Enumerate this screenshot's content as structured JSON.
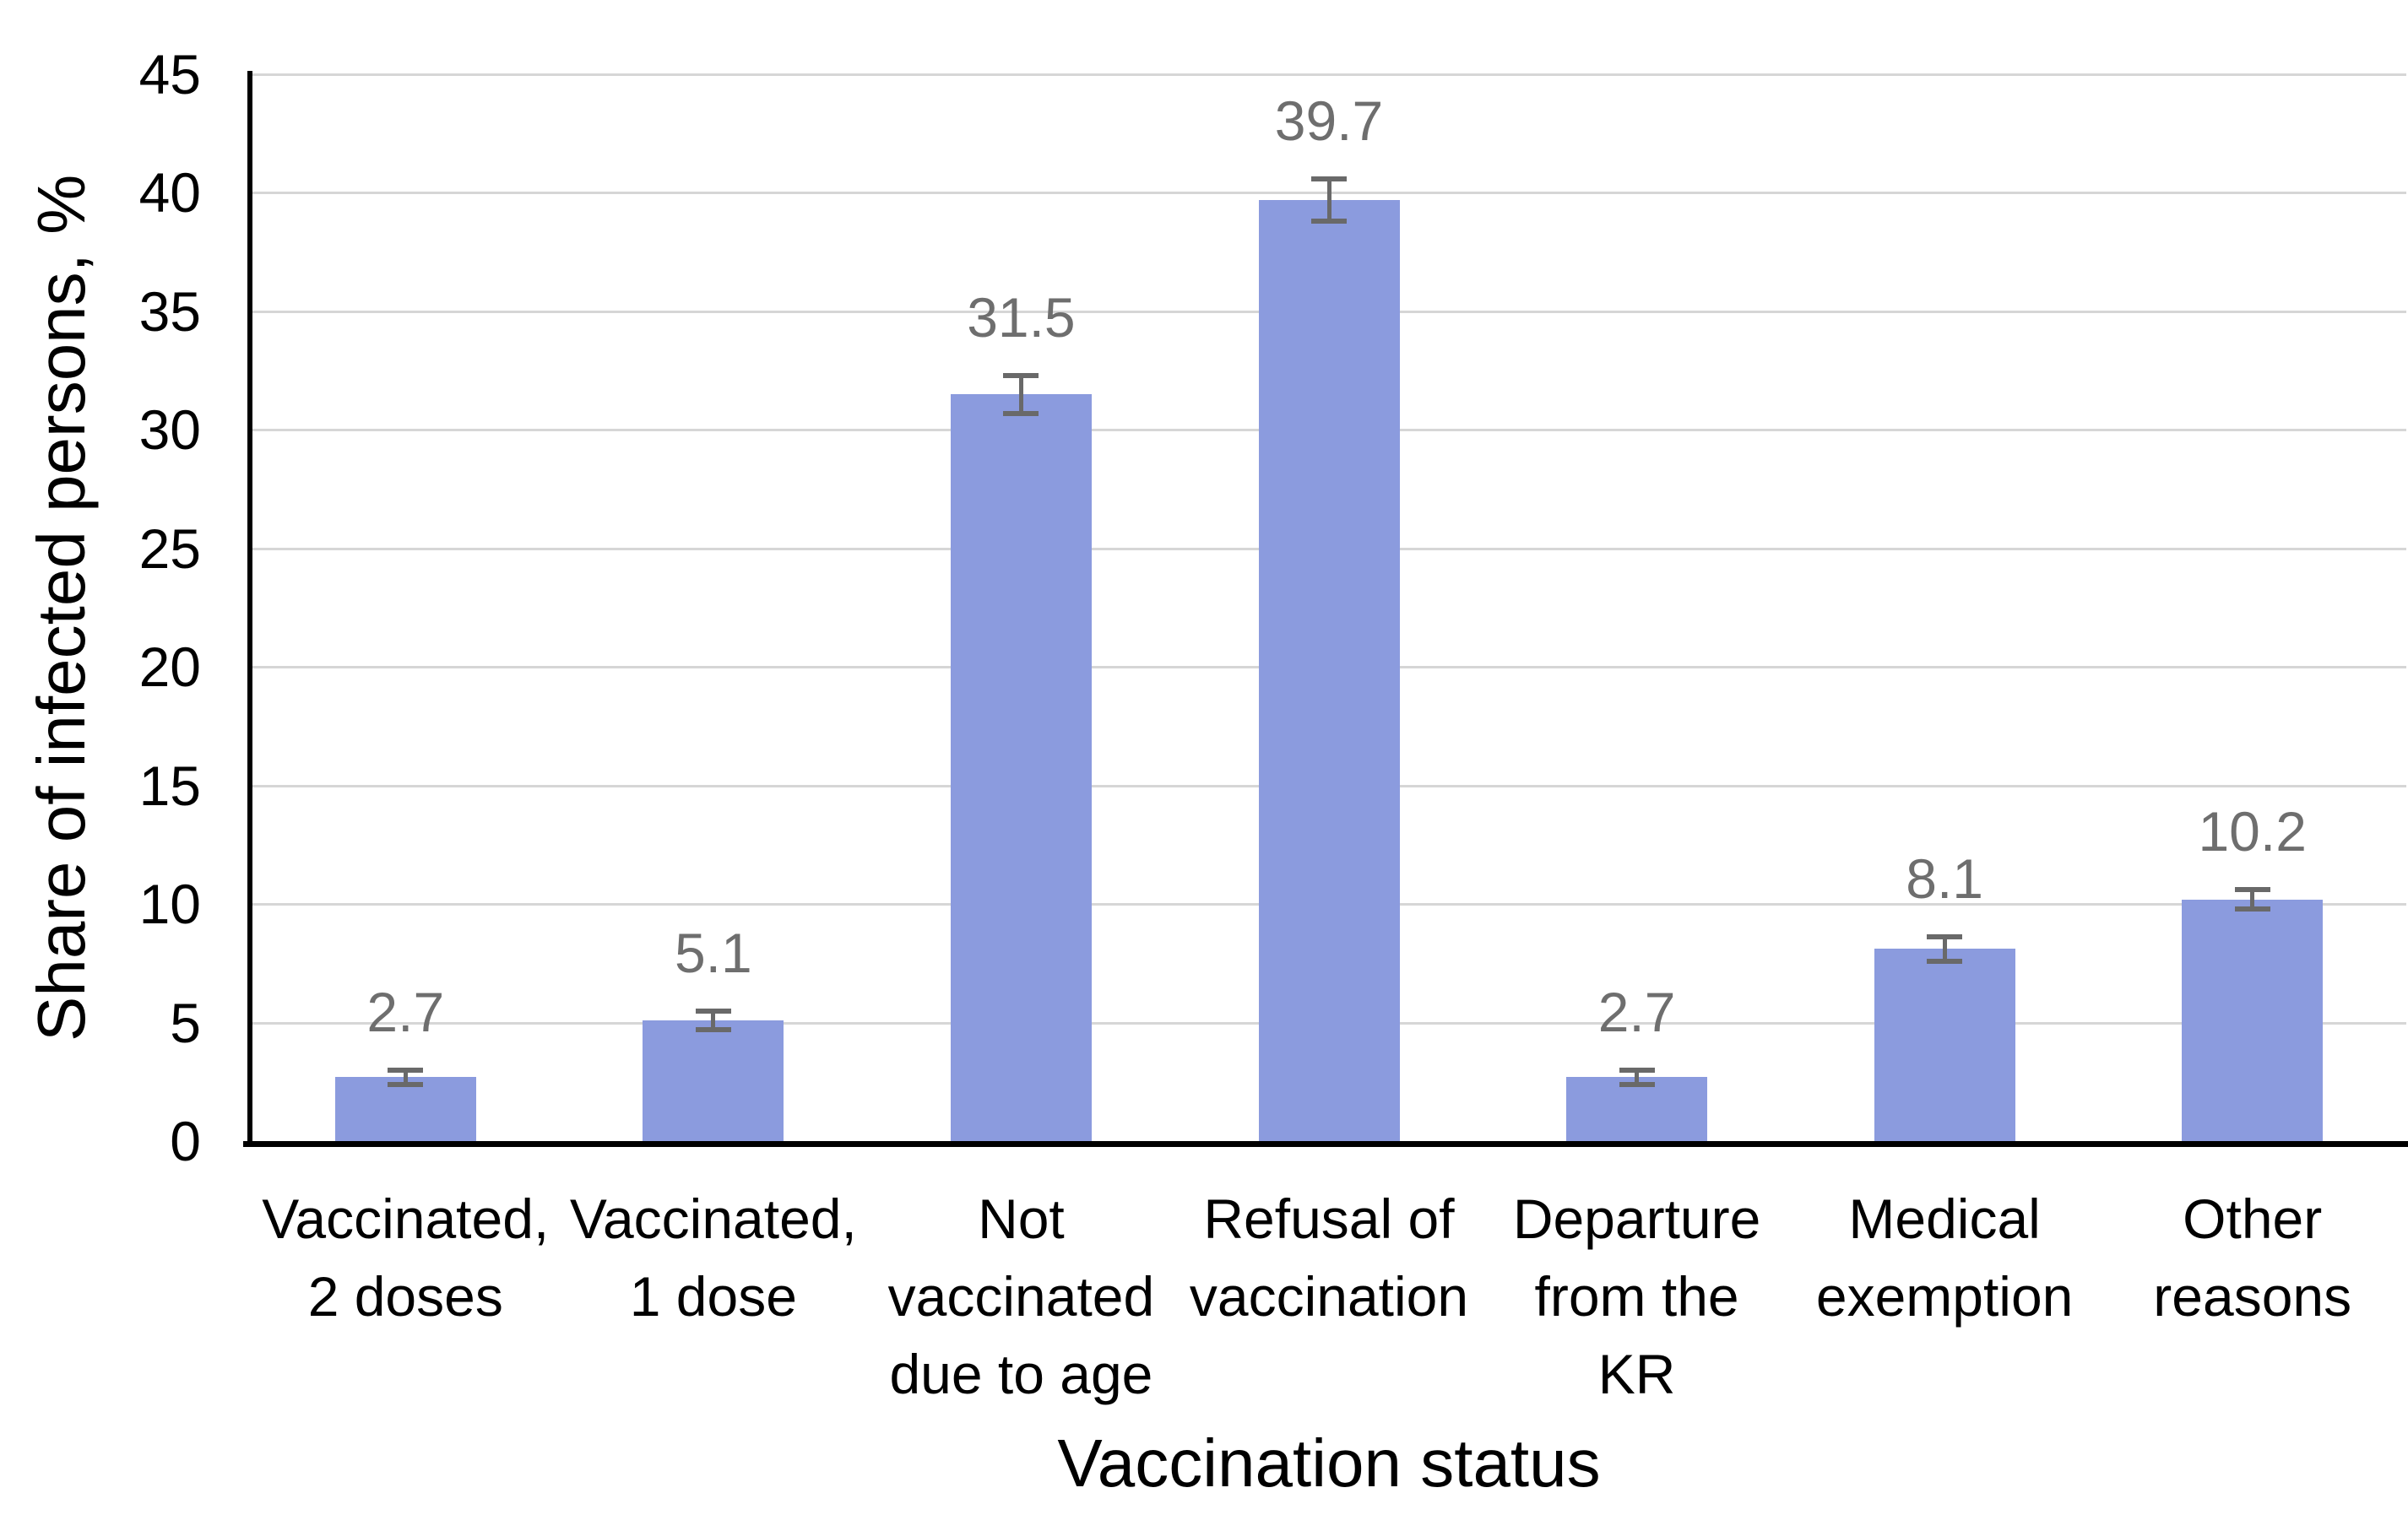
{
  "chart_data": {
    "type": "bar",
    "title": "",
    "xlabel": "Vaccination status",
    "ylabel": "Share of infected persons, %",
    "categories": [
      "Vaccinated, 2 doses",
      "Vaccinated, 1 dose",
      "Not vaccinated due to age",
      "Refusal of vaccination",
      "Departure from the KR",
      "Medical exemption",
      "Other reasons"
    ],
    "category_lines": [
      [
        "Vaccinated,",
        "2 doses"
      ],
      [
        "Vaccinated,",
        "1 dose"
      ],
      [
        "Not",
        "vaccinated",
        "due to age"
      ],
      [
        "Refusal of",
        "vaccination"
      ],
      [
        "Departure",
        "from the",
        "KR"
      ],
      [
        "Medical",
        "exemption"
      ],
      [
        "Other",
        "reasons"
      ]
    ],
    "values": [
      2.7,
      5.1,
      31.5,
      39.7,
      2.7,
      8.1,
      10.2
    ],
    "data_labels": [
      "2.7",
      "5.1",
      "31.5",
      "39.7",
      "2.7",
      "8.1",
      "10.2"
    ],
    "error_bars": [
      0.3,
      0.4,
      0.8,
      0.9,
      0.3,
      0.5,
      0.4
    ],
    "y_ticks": [
      0,
      5,
      10,
      15,
      20,
      25,
      30,
      35,
      40,
      45
    ],
    "ylim": [
      0,
      45
    ],
    "grid": "horizontal-only",
    "legend": "none",
    "colors": {
      "bar_fill": "#8B9BDE",
      "error_bar": "#696969",
      "data_label": "#6E6E6E",
      "gridline": "#D6D6D6",
      "axis_line": "#000000",
      "text": "#000000",
      "background": "#FFFFFF"
    }
  }
}
